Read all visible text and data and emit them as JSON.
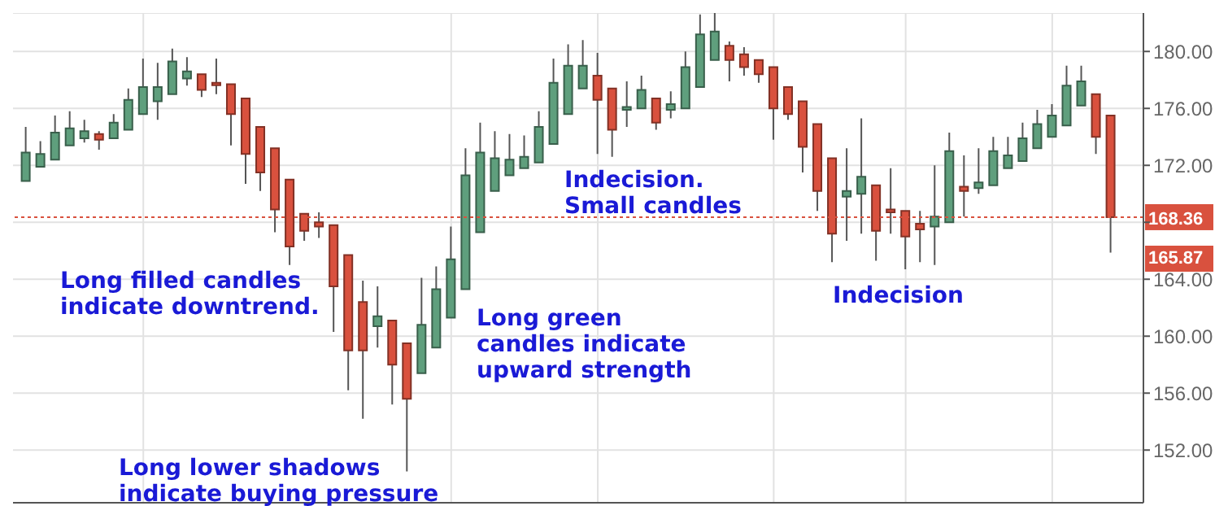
{
  "chart_data": {
    "type": "candlestick",
    "categories": [
      null,
      null,
      null,
      null,
      null,
      null,
      null,
      null,
      null,
      null,
      null,
      null,
      null,
      null,
      null,
      null,
      null,
      null,
      null,
      null,
      null,
      null,
      null,
      null,
      null,
      null,
      null,
      null,
      null,
      null,
      null,
      null,
      null,
      null,
      null,
      null,
      null,
      null,
      null,
      null,
      null,
      null,
      null,
      null,
      null,
      null,
      null,
      null,
      null,
      null,
      null,
      null,
      null,
      null,
      null,
      null,
      null,
      null,
      null,
      null,
      null,
      null,
      null,
      null,
      null,
      null,
      null,
      null,
      null,
      null,
      null,
      null,
      null,
      null,
      null
    ],
    "ohlc": [
      [
        170.9,
        174.7,
        170.9,
        172.9
      ],
      [
        171.9,
        173.7,
        171.9,
        172.8
      ],
      [
        172.4,
        175.5,
        172.4,
        174.3
      ],
      [
        173.4,
        175.8,
        173.4,
        174.6
      ],
      [
        173.9,
        175.2,
        173.6,
        174.4
      ],
      [
        174.2,
        174.4,
        173.1,
        173.8
      ],
      [
        173.9,
        175.6,
        173.9,
        175.0
      ],
      [
        174.5,
        177.4,
        174.5,
        176.6
      ],
      [
        175.6,
        179.5,
        175.6,
        177.5
      ],
      [
        176.5,
        179.2,
        175.2,
        177.5
      ],
      [
        177.0,
        180.2,
        177.0,
        179.3
      ],
      [
        178.1,
        179.6,
        177.6,
        178.6
      ],
      [
        178.4,
        178.4,
        176.8,
        177.3
      ],
      [
        177.8,
        179.5,
        177.0,
        177.7
      ],
      [
        177.7,
        177.7,
        173.4,
        175.6
      ],
      [
        176.7,
        176.7,
        170.7,
        172.8
      ],
      [
        174.7,
        174.7,
        170.2,
        171.5
      ],
      [
        173.2,
        173.2,
        167.3,
        168.9
      ],
      [
        171.0,
        171.0,
        165.0,
        166.3
      ],
      [
        168.6,
        168.6,
        166.7,
        167.4
      ],
      [
        168.0,
        168.7,
        166.9,
        167.7
      ],
      [
        167.8,
        167.8,
        160.3,
        163.5
      ],
      [
        165.7,
        165.7,
        156.2,
        159.0
      ],
      [
        162.4,
        163.9,
        154.2,
        159.0
      ],
      [
        160.7,
        163.5,
        159.2,
        161.4
      ],
      [
        161.1,
        161.1,
        155.2,
        158.0
      ],
      [
        159.5,
        159.5,
        150.5,
        155.6
      ],
      [
        157.4,
        164.1,
        157.4,
        160.8
      ],
      [
        159.2,
        164.9,
        159.2,
        163.3
      ],
      [
        161.3,
        167.7,
        161.3,
        165.4
      ],
      [
        163.3,
        173.2,
        163.3,
        171.3
      ],
      [
        167.3,
        175.0,
        167.3,
        172.9
      ],
      [
        170.2,
        174.4,
        170.2,
        172.5
      ],
      [
        171.3,
        174.2,
        171.3,
        172.4
      ],
      [
        171.8,
        174.1,
        171.8,
        172.6
      ],
      [
        172.2,
        175.8,
        172.2,
        174.7
      ],
      [
        173.5,
        179.5,
        173.5,
        177.8
      ],
      [
        175.6,
        180.5,
        175.6,
        179.0
      ],
      [
        177.4,
        180.8,
        177.4,
        179.0
      ],
      [
        178.3,
        179.9,
        172.8,
        176.6
      ],
      [
        177.4,
        177.4,
        172.6,
        174.5
      ],
      [
        175.9,
        177.9,
        174.7,
        176.1
      ],
      [
        176.0,
        178.3,
        176.0,
        177.3
      ],
      [
        176.7,
        176.7,
        174.5,
        175.0
      ],
      [
        175.9,
        177.2,
        175.3,
        176.3
      ],
      [
        176.0,
        180.0,
        176.0,
        178.9
      ],
      [
        177.5,
        182.6,
        177.5,
        181.2
      ],
      [
        179.4,
        182.7,
        179.4,
        181.4
      ],
      [
        180.4,
        180.7,
        177.9,
        179.4
      ],
      [
        179.8,
        180.3,
        178.3,
        178.9
      ],
      [
        179.4,
        179.4,
        177.8,
        178.4
      ],
      [
        178.9,
        178.9,
        173.8,
        176.0
      ],
      [
        177.5,
        177.5,
        175.2,
        175.6
      ],
      [
        176.5,
        176.5,
        171.5,
        173.3
      ],
      [
        174.9,
        174.9,
        168.8,
        170.2
      ],
      [
        172.5,
        172.5,
        165.2,
        167.2
      ],
      [
        169.8,
        173.2,
        166.7,
        170.2
      ],
      [
        170.0,
        175.3,
        167.2,
        171.2
      ],
      [
        170.6,
        170.6,
        165.3,
        167.4
      ],
      [
        168.9,
        171.8,
        167.2,
        168.7
      ],
      [
        168.8,
        168.8,
        164.7,
        167.0
      ],
      [
        167.9,
        168.8,
        165.2,
        167.5
      ],
      [
        167.7,
        172.0,
        165.0,
        168.4
      ],
      [
        168.0,
        174.3,
        168.0,
        173.0
      ],
      [
        170.5,
        172.7,
        168.4,
        170.2
      ],
      [
        170.4,
        173.2,
        170.0,
        170.8
      ],
      [
        170.6,
        174.0,
        170.6,
        173.0
      ],
      [
        171.8,
        174.0,
        171.8,
        172.7
      ],
      [
        172.3,
        175.0,
        172.3,
        173.9
      ],
      [
        173.2,
        175.9,
        173.2,
        174.9
      ],
      [
        174.0,
        176.3,
        174.0,
        175.5
      ],
      [
        174.8,
        179.0,
        174.8,
        177.6
      ],
      [
        176.2,
        179.0,
        176.2,
        177.9
      ],
      [
        177.0,
        177.0,
        172.8,
        174.0
      ],
      [
        175.5,
        175.5,
        165.87,
        168.36
      ]
    ],
    "colors": [
      "#5f9f7d",
      "#5f9f7d",
      "#5f9f7d",
      "#5f9f7d",
      "#5f9f7d",
      "#d9513e",
      "#5f9f7d",
      "#5f9f7d",
      "#5f9f7d",
      "#5f9f7d",
      "#5f9f7d",
      "#5f9f7d",
      "#d9513e",
      "#d9513e",
      "#d9513e",
      "#d9513e",
      "#d9513e",
      "#d9513e",
      "#d9513e",
      "#d9513e",
      "#d9513e",
      "#d9513e",
      "#d9513e",
      "#d9513e",
      "#5f9f7d",
      "#d9513e",
      "#d9513e",
      "#5f9f7d",
      "#5f9f7d",
      "#5f9f7d",
      "#5f9f7d",
      "#5f9f7d",
      "#5f9f7d",
      "#5f9f7d",
      "#5f9f7d",
      "#5f9f7d",
      "#5f9f7d",
      "#5f9f7d",
      "#5f9f7d",
      "#d9513e",
      "#d9513e",
      "#5f9f7d",
      "#5f9f7d",
      "#d9513e",
      "#5f9f7d",
      "#5f9f7d",
      "#5f9f7d",
      "#5f9f7d",
      "#d9513e",
      "#d9513e",
      "#d9513e",
      "#d9513e",
      "#d9513e",
      "#d9513e",
      "#d9513e",
      "#d9513e",
      "#5f9f7d",
      "#5f9f7d",
      "#d9513e",
      "#d9513e",
      "#d9513e",
      "#d9513e",
      "#5f9f7d",
      "#5f9f7d",
      "#d9513e",
      "#5f9f7d",
      "#5f9f7d",
      "#5f9f7d",
      "#5f9f7d",
      "#5f9f7d",
      "#5f9f7d",
      "#5f9f7d",
      "#5f9f7d",
      "#d9513e",
      "#d9513e"
    ],
    "ylim": [
      148.3,
      182.7
    ],
    "yticks": [
      {
        "value": 152,
        "label": "152.00"
      },
      {
        "value": 156,
        "label": "156.00"
      },
      {
        "value": 160,
        "label": "160.00"
      },
      {
        "value": 164,
        "label": "164.00"
      },
      {
        "value": 168,
        "label": null
      },
      {
        "value": 172,
        "label": "172.00"
      },
      {
        "value": 176,
        "label": "176.00"
      },
      {
        "value": 180,
        "label": "180.00"
      }
    ],
    "grid": true,
    "ref_lines": [
      {
        "axis": "y",
        "value": 168.36,
        "label": "168.36",
        "color": "#d9513e",
        "line_style": "dotted"
      }
    ],
    "annotations": [
      "Long filled candles\nindicate downtrend.",
      "Long lower shadows\nindicate buying pressure",
      "Long green\ncandles indicate\nupward strength",
      "Indecision.\nSmall candles",
      "Indecision",
      "165.87"
    ]
  }
}
